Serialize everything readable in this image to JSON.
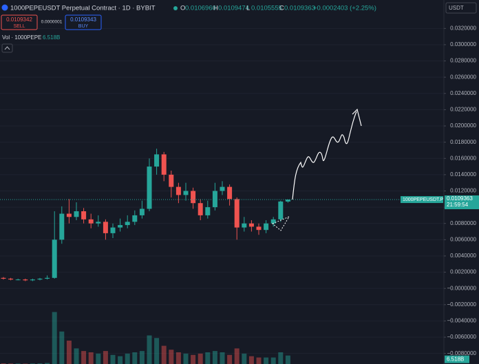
{
  "header": {
    "title": "1000PEPEUSDT Perpetual Contract · 1D · BYBIT",
    "ohlc": [
      {
        "key": "O",
        "value": "0.0106960"
      },
      {
        "key": "H",
        "value": "0.0109474"
      },
      {
        "key": "L",
        "value": "0.0105555"
      },
      {
        "key": "C",
        "value": "0.0109363"
      }
    ],
    "change": "+0.0002403 (+2.25%)",
    "currency": "USDT"
  },
  "trade": {
    "sell_price": "0.0109342",
    "sell": "SELL",
    "spread": "0.0000001",
    "buy_price": "0.0109343",
    "buy": "BUY"
  },
  "volume_legend": {
    "label": "Vol · 1000PEPE",
    "value": "6.518B"
  },
  "price_tag": {
    "symbol": "1000PEPEUSDT.P",
    "price": "0.0109363",
    "countdown": "21:59:54"
  },
  "chart_data": {
    "type": "candlestick",
    "open": [
      0.0013,
      0.0012,
      0.0011,
      0.0011,
      0.001,
      0.0011,
      0.0012,
      0.0013,
      0.006,
      0.0092,
      0.0088,
      0.0095,
      0.0085,
      0.008,
      0.0082,
      0.0068,
      0.0075,
      0.0078,
      0.0082,
      0.009,
      0.0098,
      0.015,
      0.0165,
      0.014,
      0.0125,
      0.0115,
      0.012,
      0.0105,
      0.009,
      0.01,
      0.012,
      0.0125,
      0.011,
      0.0075,
      0.008,
      0.0076,
      0.0072,
      0.008,
      0.0085,
      0.010696
    ],
    "high": [
      0.0014,
      0.0013,
      0.0012,
      0.0012,
      0.0012,
      0.0013,
      0.0016,
      0.0095,
      0.0101,
      0.011,
      0.0106,
      0.0099,
      0.0092,
      0.009,
      0.0085,
      0.008,
      0.0086,
      0.009,
      0.0096,
      0.0108,
      0.016,
      0.0172,
      0.0168,
      0.0145,
      0.013,
      0.013,
      0.0124,
      0.011,
      0.0108,
      0.013,
      0.0132,
      0.0128,
      0.0112,
      0.0088,
      0.0084,
      0.008,
      0.0084,
      0.0088,
      0.0108,
      0.0109474
    ],
    "low": [
      0.0011,
      0.001,
      0.001,
      0.0009,
      0.0009,
      0.001,
      0.0011,
      0.0012,
      0.0055,
      0.008,
      0.0084,
      0.008,
      0.0074,
      0.0076,
      0.006,
      0.0062,
      0.007,
      0.0074,
      0.0078,
      0.0086,
      0.0095,
      0.014,
      0.0132,
      0.0112,
      0.0105,
      0.0108,
      0.0098,
      0.0084,
      0.0086,
      0.0096,
      0.0115,
      0.0102,
      0.006,
      0.007,
      0.007,
      0.0066,
      0.0068,
      0.0076,
      0.0082,
      0.0105555
    ],
    "close": [
      0.0012,
      0.0011,
      0.0011,
      0.001,
      0.0011,
      0.0012,
      0.0013,
      0.006,
      0.0092,
      0.0088,
      0.0095,
      0.0085,
      0.008,
      0.0082,
      0.0068,
      0.0075,
      0.0078,
      0.0082,
      0.009,
      0.0098,
      0.015,
      0.0165,
      0.014,
      0.0125,
      0.0115,
      0.012,
      0.0105,
      0.009,
      0.01,
      0.012,
      0.0125,
      0.011,
      0.0075,
      0.008,
      0.0076,
      0.0072,
      0.008,
      0.0085,
      0.0107,
      0.0109363
    ],
    "volume": [
      0.5,
      0.4,
      0.4,
      0.3,
      0.4,
      0.5,
      0.8,
      40,
      25,
      18,
      12,
      10,
      9,
      8,
      10,
      7,
      6,
      8,
      9,
      10,
      22,
      20,
      14,
      11,
      9,
      8,
      7,
      8,
      9,
      10,
      9,
      7,
      12,
      8,
      6,
      5,
      5,
      5,
      9,
      6.518
    ],
    "volume_lim": [
      0,
      45
    ],
    "up_color": "#26a69a",
    "down_color": "#ef5350",
    "ylim": [
      -0.0093,
      0.0355
    ],
    "yticks": [
      {
        "value": 0.032,
        "label": "0.0320000"
      },
      {
        "value": 0.03,
        "label": "0.0300000"
      },
      {
        "value": 0.028,
        "label": "0.0280000"
      },
      {
        "value": 0.026,
        "label": "0.0260000"
      },
      {
        "value": 0.024,
        "label": "0.0240000"
      },
      {
        "value": 0.022,
        "label": "0.0220000"
      },
      {
        "value": 0.02,
        "label": "0.0200000"
      },
      {
        "value": 0.018,
        "label": "0.0180000"
      },
      {
        "value": 0.016,
        "label": "0.0160000"
      },
      {
        "value": 0.014,
        "label": "0.0140000"
      },
      {
        "value": 0.012,
        "label": "0.0120000"
      },
      {
        "value": 0.01,
        "label": "0.0100000"
      },
      {
        "value": 0.008,
        "label": "0.0080000"
      },
      {
        "value": 0.006,
        "label": "0.0060000"
      },
      {
        "value": 0.004,
        "label": "0.0040000"
      },
      {
        "value": 0.002,
        "label": "0.0020000"
      },
      {
        "value": 0,
        "label": "−0.0000000"
      },
      {
        "value": -0.002,
        "label": "−0.0020000"
      },
      {
        "value": -0.004,
        "label": "−0.0040000"
      },
      {
        "value": -0.006,
        "label": "−0.0060000"
      },
      {
        "value": -0.008,
        "label": "−0.0080000"
      }
    ],
    "grid": true
  }
}
